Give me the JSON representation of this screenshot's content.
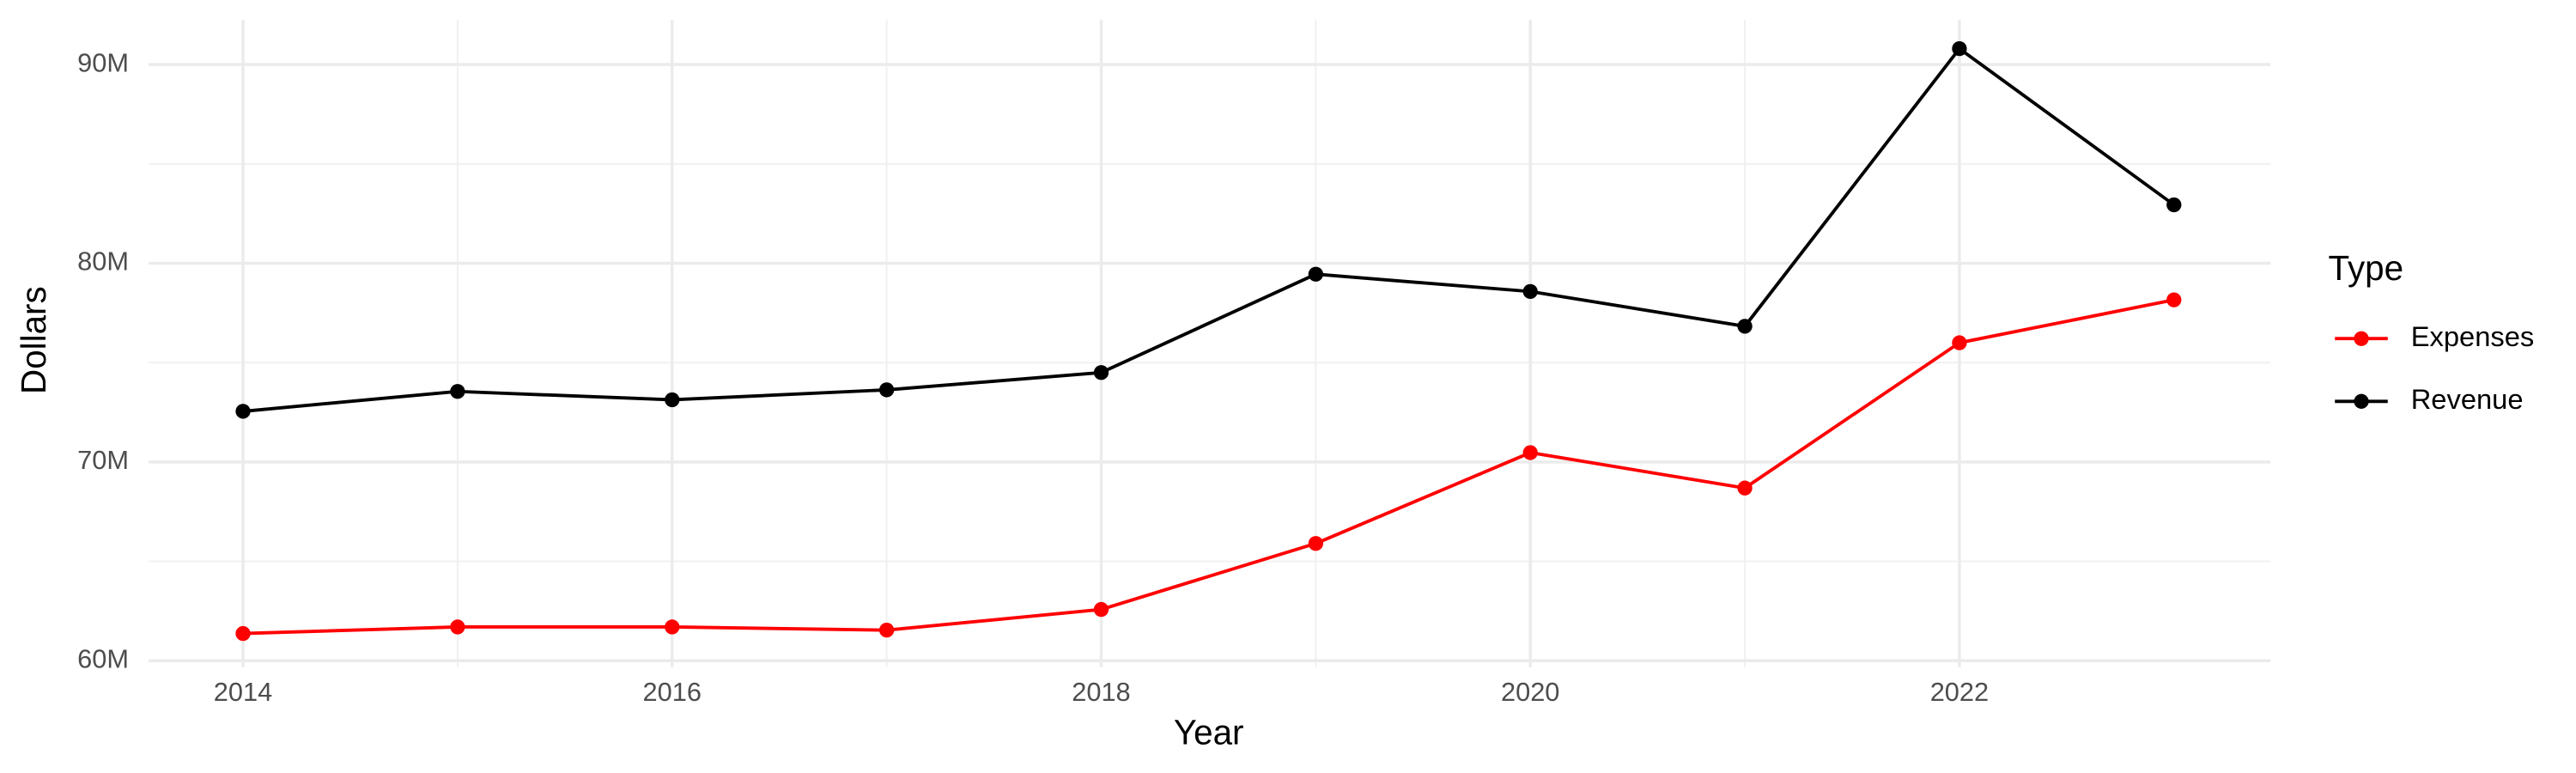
{
  "chart_data": {
    "type": "line",
    "x_label": "Year",
    "y_label": "Dollars",
    "legend_title": "Type",
    "legend_position": "right",
    "x": [
      2014,
      2015,
      2016,
      2017,
      2018,
      2019,
      2020,
      2021,
      2022,
      2023
    ],
    "series": [
      {
        "name": "Expenses",
        "color": "#ff0000",
        "values": [
          61370000,
          61700000,
          61700000,
          61540000,
          62580000,
          65900000,
          70470000,
          68690000,
          76000000,
          78160000
        ]
      },
      {
        "name": "Revenue",
        "color": "#000000",
        "values": [
          72550000,
          73550000,
          73130000,
          73630000,
          74500000,
          79450000,
          78580000,
          76830000,
          90800000,
          82940000
        ]
      }
    ],
    "xlim": [
      2013.56,
      2023.45
    ],
    "xticks": [
      2014,
      2016,
      2018,
      2020,
      2022
    ],
    "ylim": [
      59670000,
      92250000
    ],
    "yticks": [
      {
        "value": 60000000,
        "label": "60M"
      },
      {
        "value": 70000000,
        "label": "70M"
      },
      {
        "value": 80000000,
        "label": "80M"
      },
      {
        "value": 90000000,
        "label": "90M"
      }
    ],
    "grid": true
  }
}
